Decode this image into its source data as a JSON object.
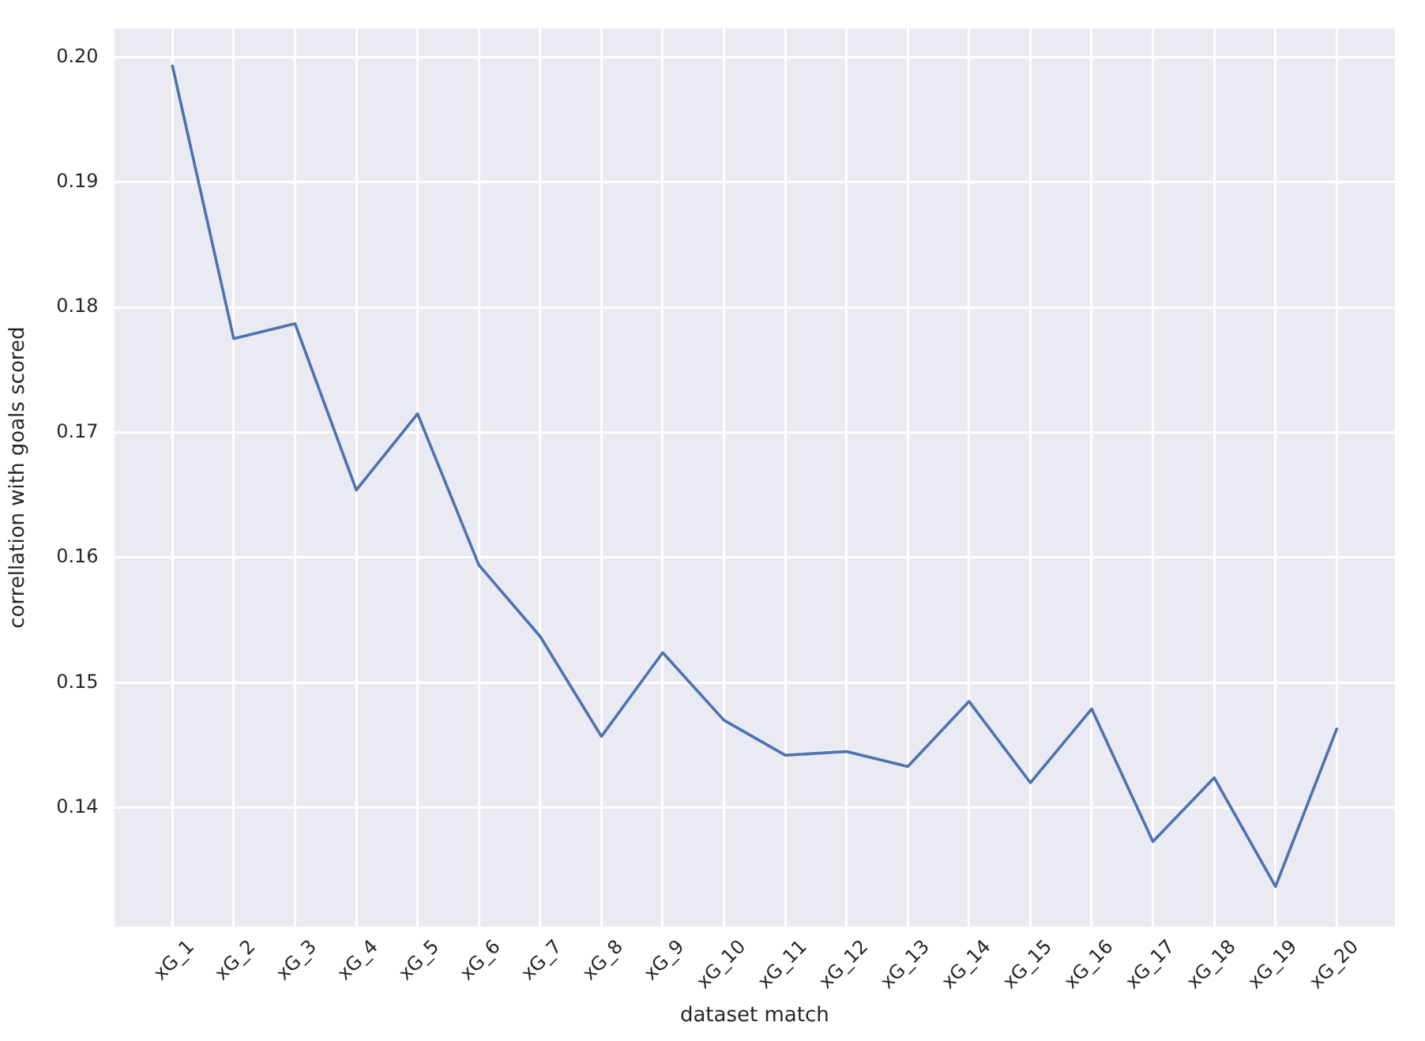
{
  "chart_data": {
    "type": "line",
    "xlabel": "dataset match",
    "ylabel": "correllation with goals scored",
    "categories": [
      "xG_1",
      "xG_2",
      "xG_3",
      "xG_4",
      "xG_5",
      "xG_6",
      "xG_7",
      "xG_8",
      "xG_9",
      "xG_10",
      "xG_11",
      "xG_12",
      "xG_13",
      "xG_14",
      "xG_15",
      "xG_16",
      "xG_17",
      "xG_18",
      "xG_19",
      "xG_20"
    ],
    "series": [
      {
        "color": "#4c72b0",
        "values": [
          0.1993,
          0.1775,
          0.1787,
          0.1654,
          0.1715,
          0.1594,
          0.1537,
          0.1457,
          0.1524,
          0.147,
          0.1442,
          0.1445,
          0.1433,
          0.1485,
          0.142,
          0.1479,
          0.1373,
          0.1424,
          0.1337,
          0.1463
        ]
      }
    ],
    "ylim": [
      0.1305,
      0.2023
    ],
    "yticks": [
      0.14,
      0.15,
      0.16,
      0.17,
      0.18,
      0.19,
      {
        "value": 0.2,
        "label": "0.20"
      }
    ],
    "grid": true
  }
}
